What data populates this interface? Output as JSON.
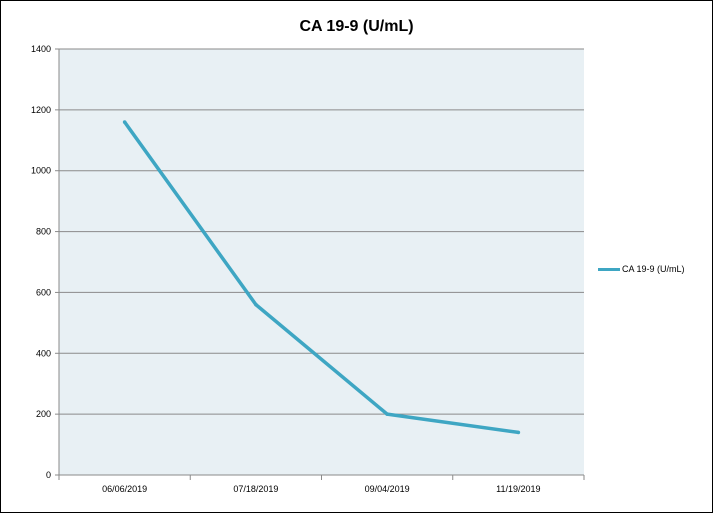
{
  "chart_data": {
    "type": "line",
    "title": "CA 19-9 (U/mL)",
    "xlabel": "",
    "ylabel": "",
    "categories": [
      "06/06/2019",
      "07/18/2019",
      "09/04/2019",
      "11/19/2019"
    ],
    "series": [
      {
        "name": "CA 19-9 (U/mL)",
        "values": [
          1160,
          560,
          200,
          140
        ],
        "color": "#3ea6c3"
      }
    ],
    "ylim": [
      0,
      1400
    ],
    "yticks": [
      0,
      200,
      400,
      600,
      800,
      1000,
      1200,
      1400
    ],
    "grid": true,
    "legend_position": "right",
    "plot_background": "#e8f0f4"
  }
}
